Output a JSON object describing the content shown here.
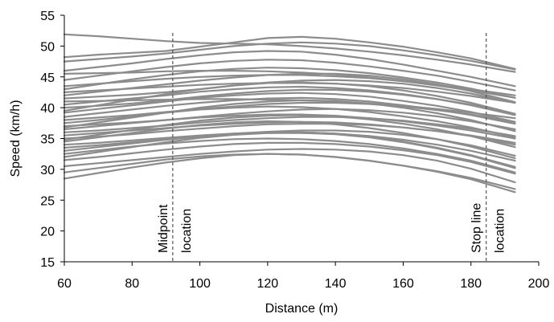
{
  "chart_data": {
    "type": "line",
    "title": "",
    "xlabel": "Distance (m)",
    "ylabel": "Speed (km/h)",
    "xlim": [
      60,
      200
    ],
    "ylim": [
      15,
      55
    ],
    "x_ticks": [
      60,
      80,
      100,
      120,
      140,
      160,
      180,
      200
    ],
    "y_ticks": [
      15,
      20,
      25,
      30,
      35,
      40,
      45,
      50,
      55
    ],
    "grid": false,
    "legend": "none",
    "series_color": "#8c8c8c",
    "x": [
      60,
      70,
      80,
      90,
      100,
      110,
      120,
      130,
      140,
      150,
      160,
      170,
      180,
      193
    ],
    "series": [
      {
        "values": [
          51.9,
          51.6,
          51.2,
          50.8,
          50.5,
          50.4,
          50.3,
          50.0,
          49.6,
          49.1,
          48.5,
          47.8,
          47.0,
          45.8
        ]
      },
      {
        "values": [
          48.2,
          48.6,
          48.9,
          49.2,
          49.9,
          50.6,
          51.3,
          51.5,
          51.2,
          50.6,
          49.9,
          49.0,
          48.0,
          46.3
        ]
      },
      {
        "values": [
          47.5,
          47.9,
          48.3,
          48.8,
          49.4,
          50.0,
          50.4,
          50.6,
          50.4,
          50.0,
          49.3,
          48.5,
          47.6,
          46.2
        ]
      },
      {
        "values": [
          46.0,
          46.6,
          47.2,
          47.9,
          48.5,
          49.0,
          49.2,
          49.1,
          48.6,
          47.9,
          47.0,
          46.0,
          45.0,
          43.5
        ]
      },
      {
        "values": [
          44.5,
          45.2,
          45.9,
          46.6,
          47.2,
          47.6,
          47.8,
          47.7,
          47.3,
          46.7,
          46.0,
          45.2,
          44.2,
          42.8
        ]
      },
      {
        "values": [
          43.0,
          43.8,
          44.6,
          45.3,
          45.9,
          46.3,
          46.5,
          46.4,
          46.1,
          45.6,
          44.9,
          44.1,
          43.1,
          41.6
        ]
      },
      {
        "values": [
          42.0,
          42.6,
          43.2,
          43.8,
          44.4,
          44.9,
          45.3,
          45.5,
          45.5,
          45.2,
          44.6,
          43.8,
          42.7,
          40.9
        ]
      },
      {
        "values": [
          41.5,
          41.8,
          42.1,
          42.5,
          43.0,
          43.6,
          44.1,
          44.4,
          44.5,
          44.3,
          43.9,
          43.2,
          42.3,
          40.8
        ]
      },
      {
        "values": [
          40.5,
          41.0,
          41.5,
          42.0,
          42.6,
          43.0,
          43.3,
          43.4,
          43.2,
          42.8,
          42.2,
          41.4,
          40.5,
          39.0
        ]
      },
      {
        "values": [
          40.0,
          40.3,
          40.7,
          41.2,
          41.8,
          42.3,
          42.7,
          42.9,
          42.9,
          42.6,
          42.1,
          41.4,
          40.4,
          38.8
        ]
      },
      {
        "values": [
          39.2,
          39.8,
          40.4,
          41.0,
          41.6,
          42.0,
          42.3,
          42.4,
          42.2,
          41.8,
          41.1,
          40.3,
          39.3,
          37.7
        ]
      },
      {
        "values": [
          38.5,
          39.1,
          39.7,
          40.3,
          40.8,
          41.2,
          41.5,
          41.6,
          41.4,
          41.0,
          40.4,
          39.7,
          38.8,
          37.4
        ]
      },
      {
        "values": [
          38.0,
          38.4,
          38.8,
          39.3,
          39.8,
          40.2,
          40.6,
          40.8,
          40.8,
          40.6,
          40.2,
          39.6,
          38.9,
          37.7
        ]
      },
      {
        "values": [
          37.5,
          38.0,
          38.6,
          39.2,
          39.7,
          40.0,
          40.2,
          40.1,
          39.8,
          39.3,
          38.6,
          37.8,
          36.8,
          35.2
        ]
      },
      {
        "values": [
          37.0,
          37.3,
          37.6,
          38.0,
          38.5,
          39.0,
          39.4,
          39.7,
          39.8,
          39.6,
          39.2,
          38.6,
          37.8,
          36.5
        ]
      },
      {
        "values": [
          36.5,
          37.0,
          37.5,
          38.0,
          38.4,
          38.7,
          38.9,
          38.9,
          38.7,
          38.3,
          37.8,
          37.1,
          36.3,
          35.0
        ]
      },
      {
        "values": [
          36.0,
          36.3,
          36.7,
          37.1,
          37.6,
          38.0,
          38.3,
          38.5,
          38.5,
          38.3,
          37.9,
          37.3,
          36.6,
          35.4
        ]
      },
      {
        "values": [
          35.5,
          35.9,
          36.3,
          36.7,
          37.1,
          37.4,
          37.6,
          37.7,
          37.6,
          37.3,
          36.8,
          36.2,
          35.4,
          34.0
        ]
      },
      {
        "values": [
          35.0,
          35.3,
          35.7,
          36.2,
          36.6,
          37.0,
          37.3,
          37.4,
          37.4,
          37.2,
          36.8,
          36.2,
          35.5,
          34.3
        ]
      },
      {
        "values": [
          34.5,
          35.2,
          35.9,
          36.6,
          37.2,
          37.6,
          37.8,
          37.7,
          37.3,
          36.7,
          35.9,
          34.9,
          33.7,
          31.8
        ]
      },
      {
        "values": [
          34.0,
          34.3,
          34.7,
          35.1,
          35.5,
          35.8,
          36.0,
          36.0,
          35.8,
          35.4,
          34.8,
          34.0,
          33.0,
          31.4
        ]
      },
      {
        "values": [
          33.5,
          33.9,
          34.4,
          34.9,
          35.4,
          35.8,
          36.1,
          36.3,
          36.3,
          36.1,
          35.6,
          34.9,
          33.9,
          32.2
        ]
      },
      {
        "values": [
          33.0,
          33.6,
          34.2,
          34.8,
          35.3,
          35.7,
          35.9,
          35.9,
          35.7,
          35.2,
          34.4,
          33.4,
          32.2,
          30.2
        ]
      },
      {
        "values": [
          32.5,
          33.1,
          33.7,
          34.2,
          34.6,
          34.9,
          35.0,
          34.9,
          34.6,
          34.1,
          33.4,
          32.5,
          31.4,
          29.5
        ]
      },
      {
        "values": [
          31.5,
          32.0,
          32.6,
          33.2,
          33.7,
          34.1,
          34.3,
          34.3,
          34.1,
          33.7,
          33.1,
          32.3,
          31.2,
          29.3
        ]
      },
      {
        "values": [
          30.5,
          31.0,
          31.5,
          32.0,
          32.5,
          32.9,
          33.2,
          33.3,
          33.2,
          32.9,
          32.3,
          31.4,
          30.1,
          27.9
        ]
      },
      {
        "values": [
          29.5,
          30.2,
          30.9,
          31.6,
          32.1,
          32.4,
          32.5,
          32.4,
          32.0,
          31.4,
          30.6,
          29.6,
          28.4,
          26.3
        ]
      },
      {
        "values": [
          28.5,
          29.4,
          30.3,
          31.1,
          31.8,
          32.3,
          32.5,
          32.4,
          32.0,
          31.4,
          30.6,
          29.7,
          28.6,
          26.8
        ]
      },
      {
        "values": [
          45.5,
          45.6,
          45.7,
          45.9,
          46.0,
          46.0,
          45.9,
          45.7,
          45.4,
          44.9,
          44.3,
          43.6,
          42.8,
          41.6
        ]
      },
      {
        "values": [
          43.5,
          43.9,
          44.3,
          44.7,
          45.0,
          45.2,
          45.3,
          45.3,
          45.1,
          44.8,
          44.3,
          43.7,
          43.0,
          42.0
        ]
      },
      {
        "values": [
          39.5,
          40.4,
          41.3,
          42.2,
          43.0,
          43.6,
          44.0,
          44.1,
          43.9,
          43.5,
          42.8,
          41.9,
          40.8,
          39.0
        ]
      },
      {
        "values": [
          36.8,
          37.6,
          38.4,
          39.2,
          40.0,
          40.6,
          41.0,
          41.2,
          41.1,
          40.7,
          40.0,
          39.1,
          38.0,
          36.2
        ]
      },
      {
        "values": [
          34.8,
          35.6,
          36.4,
          37.2,
          37.9,
          38.4,
          38.7,
          38.8,
          38.6,
          38.1,
          37.4,
          36.5,
          35.4,
          33.6
        ]
      },
      {
        "values": [
          32.0,
          32.8,
          33.6,
          34.4,
          35.1,
          35.6,
          35.9,
          36.0,
          35.8,
          35.3,
          34.5,
          33.5,
          32.3,
          30.4
        ]
      },
      {
        "values": [
          41.0,
          41.1,
          41.2,
          41.3,
          41.4,
          41.4,
          41.3,
          41.2,
          41.0,
          40.7,
          40.3,
          39.8,
          39.2,
          38.3
        ]
      },
      {
        "values": [
          42.5,
          42.8,
          43.1,
          43.4,
          43.7,
          43.9,
          44.0,
          44.0,
          43.9,
          43.6,
          43.2,
          42.6,
          41.9,
          40.8
        ]
      }
    ],
    "annotations": [
      {
        "x": 92,
        "label_left": "Midpoint",
        "label_right": "location"
      },
      {
        "x": 184.5,
        "label_left": "Stop line",
        "label_right": "location"
      }
    ]
  }
}
